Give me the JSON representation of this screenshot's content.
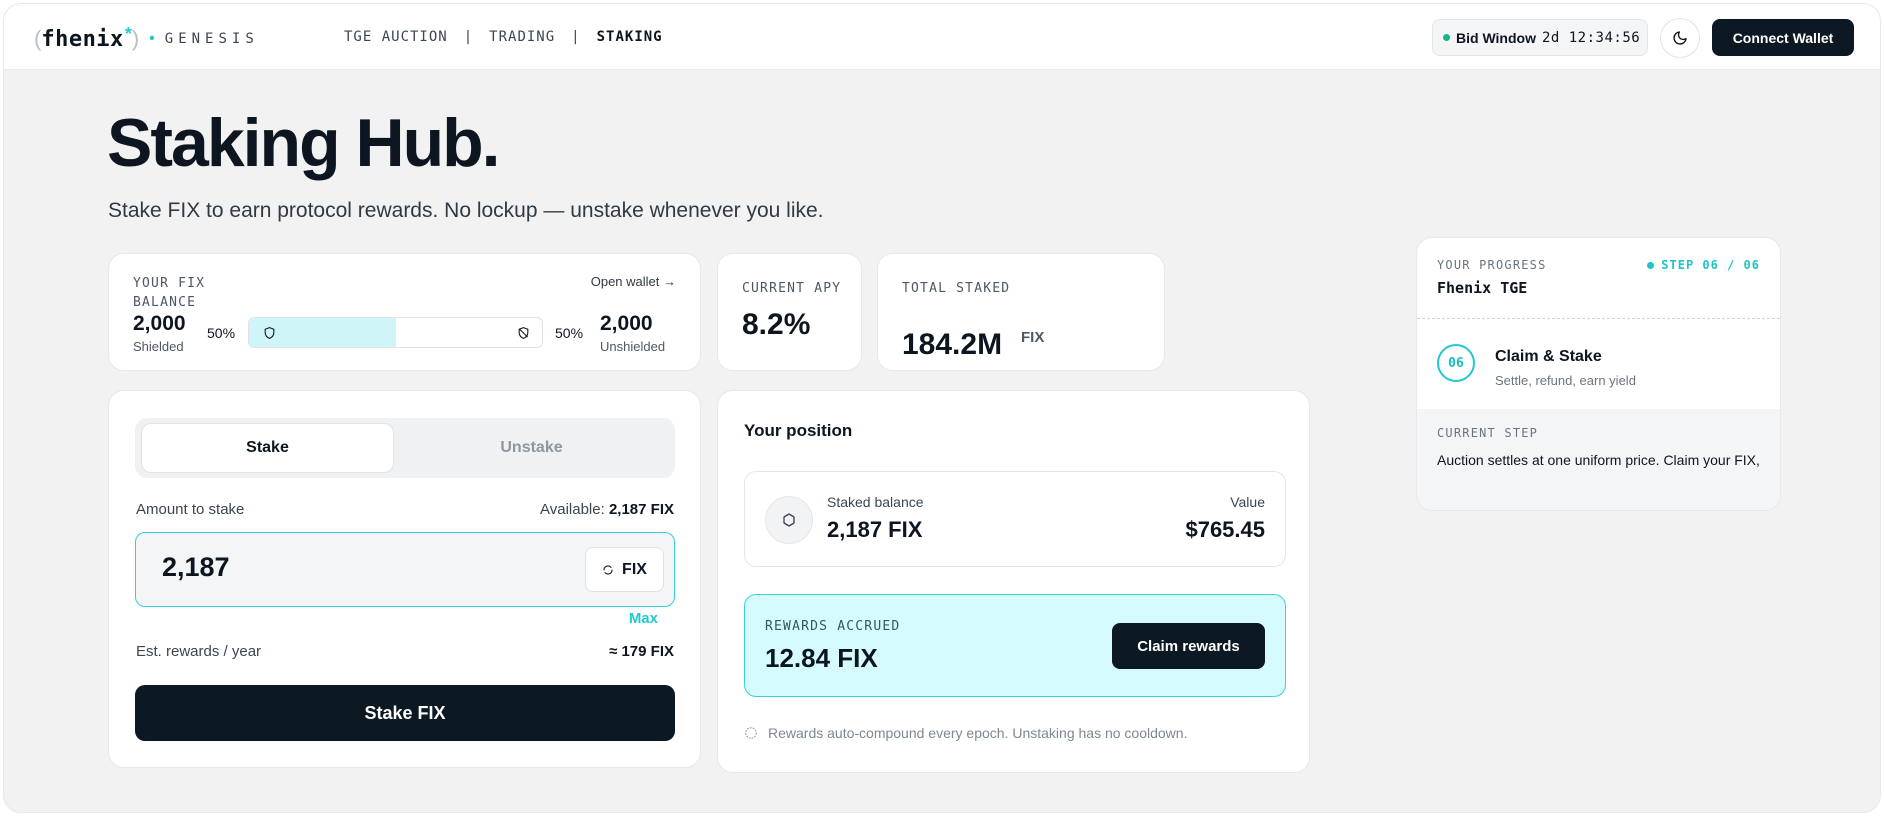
{
  "header": {
    "logo_brand": "fhenix",
    "logo_mark": "*",
    "logo_sub": "GENESIS",
    "nav": [
      {
        "label": "TGE AUCTION"
      },
      {
        "label": "TRADING"
      },
      {
        "label": "STAKING",
        "active": true
      }
    ],
    "nav_separator": "|",
    "bid_window_label": "Bid Window",
    "bid_window_time": "2d 12:34:56",
    "theme_icon": "moon-icon",
    "connect_label": "Connect Wallet"
  },
  "hero": {
    "title": "Staking Hub.",
    "subtitle": "Stake FIX to earn protocol rewards. No lockup — unstake whenever you like."
  },
  "balance": {
    "label": "YOUR FIX BALANCE",
    "open_wallet": "Open wallet →",
    "shielded_value": "2,000",
    "shielded_label": "Shielded",
    "shielded_pct": "50%",
    "unshielded_value": "2,000",
    "unshielded_label": "Unshielded",
    "unshielded_pct": "50%",
    "shielded_fraction": 0.5
  },
  "apy": {
    "label": "CURRENT APY",
    "value": "8.2%"
  },
  "total_staked": {
    "label": "TOTAL STAKED",
    "value": "184.2M",
    "unit": "FIX"
  },
  "stake_form": {
    "tabs": [
      {
        "label": "Stake",
        "active": true
      },
      {
        "label": "Unstake",
        "active": false
      }
    ],
    "amount_label": "Amount to stake",
    "available_label": "Available:",
    "available_value": "2,187 FIX",
    "amount_value": "2,187",
    "token": "FIX",
    "max_label": "Max",
    "est_label": "Est. rewards / year",
    "est_value": "≈ 179 FIX",
    "submit_label": "Stake FIX"
  },
  "position": {
    "title": "Your position",
    "staked_label": "Staked balance",
    "staked_value": "2,187 FIX",
    "value_label": "Value",
    "value_amount": "$765.45",
    "rewards_label": "REWARDS ACCRUED",
    "rewards_value": "12.84 FIX",
    "claim_label": "Claim rewards",
    "note": "Rewards auto-compound every epoch. Unstaking has no cooldown."
  },
  "progress": {
    "label": "YOUR PROGRESS",
    "step": "STEP 06 / 06",
    "name": "Fhenix TGE",
    "step_number": "06",
    "step_title": "Claim & Stake",
    "step_desc": "Settle, refund, earn yield",
    "current_label": "CURRENT STEP",
    "current_text": "Auction settles at one uniform price. Claim your FIX,"
  },
  "colors": {
    "accent": "#22c9d0",
    "dark": "#0c1822",
    "rewards_bg": "#d6fbfc",
    "bar_fill": "#cff5f9",
    "live": "#16b58a"
  }
}
